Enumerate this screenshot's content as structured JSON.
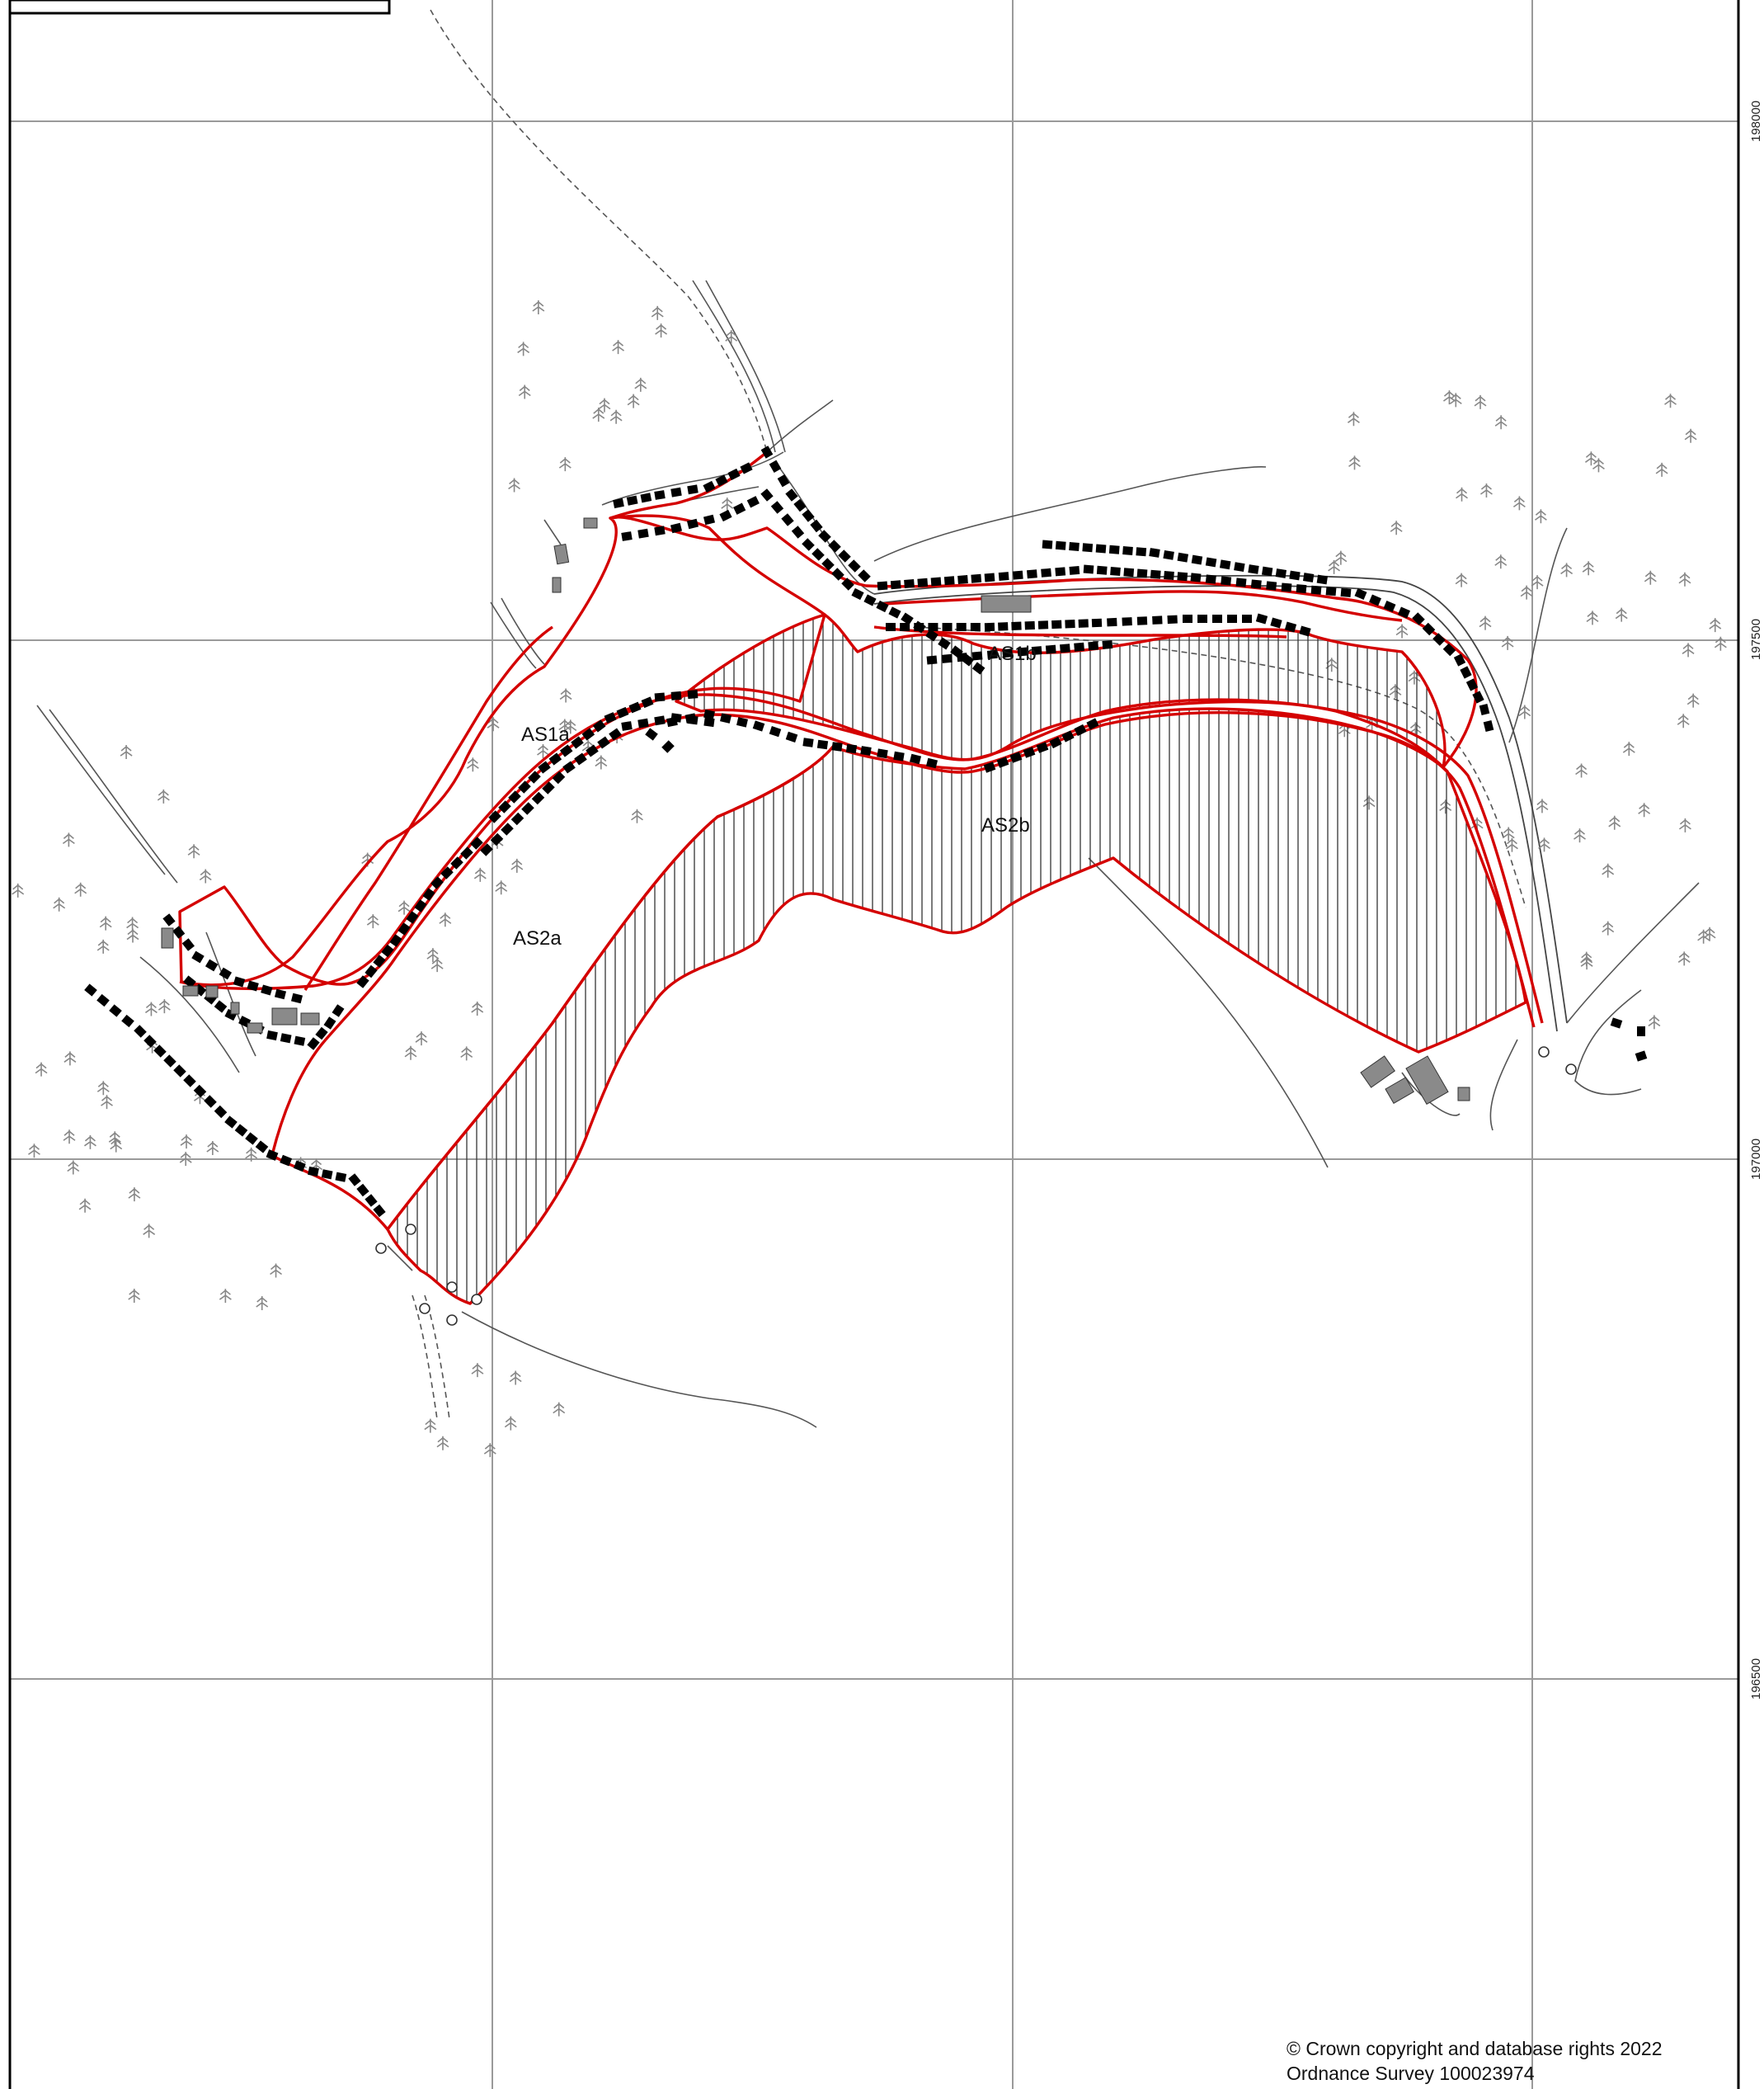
{
  "map": {
    "area_labels": {
      "as1a": "AS1a",
      "as1b": "AS1b",
      "as2a": "AS2a",
      "as2b": "AS2b"
    },
    "grid_northings": {
      "n198000": "198000",
      "n197500": "197500",
      "n197000": "197000",
      "n196500": "196500"
    },
    "colors": {
      "boundary": "#d40000",
      "grid": "#9a9a9a",
      "hedge": "#000000",
      "building": "#8a8a8a"
    }
  },
  "copyright": {
    "line1": "© Crown copyright and database rights 2022",
    "line2": "Ordnance Survey 100023974"
  }
}
